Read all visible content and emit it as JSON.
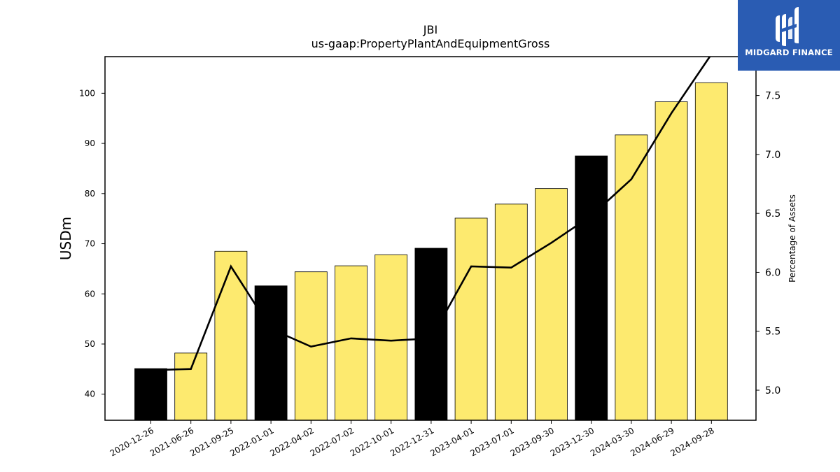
{
  "title": "JBI",
  "subtitle": "us-gaap:PropertyPlantAndEquipmentGross",
  "logo": {
    "text": "MIDGARD FINANCE",
    "color": "#2a5cb3"
  },
  "chart_data": {
    "type": "bar",
    "categories": [
      "2020-12-26",
      "2021-06-26",
      "2021-09-25",
      "2022-01-01",
      "2022-04-02",
      "2022-07-02",
      "2022-10-01",
      "2022-12-31",
      "2023-04-01",
      "2023-07-01",
      "2023-09-30",
      "2023-12-30",
      "2024-03-30",
      "2024-06-29",
      "2024-09-28"
    ],
    "series": [
      {
        "axis": "left",
        "type": "bar",
        "values": [
          45.1,
          48.2,
          68.5,
          61.6,
          64.4,
          65.6,
          67.8,
          69.1,
          75.1,
          77.9,
          81.0,
          87.5,
          91.7,
          98.3,
          102.1
        ],
        "colors": [
          "#000000",
          "#fdea6f",
          "#fdea6f",
          "#000000",
          "#fdea6f",
          "#fdea6f",
          "#fdea6f",
          "#000000",
          "#fdea6f",
          "#fdea6f",
          "#fdea6f",
          "#000000",
          "#fdea6f",
          "#fdea6f",
          "#fdea6f"
        ]
      },
      {
        "axis": "right",
        "type": "line",
        "color": "#000000",
        "values": [
          5.17,
          5.18,
          6.05,
          5.52,
          5.37,
          5.44,
          5.42,
          5.44,
          6.05,
          6.04,
          6.25,
          6.48,
          6.79,
          7.35,
          7.85
        ]
      }
    ],
    "ylabel_left": "USDm",
    "ylabel_right": "Percentage of Assets",
    "ylim_left": [
      34.8,
      107.3
    ],
    "ylim_right": [
      4.745,
      7.83
    ],
    "yticks_left": [
      40,
      50,
      60,
      70,
      80,
      90,
      100
    ],
    "yticks_right": [
      "5.0",
      "5.5",
      "6.0",
      "6.5",
      "7.0",
      "7.5"
    ],
    "grid": false
  }
}
